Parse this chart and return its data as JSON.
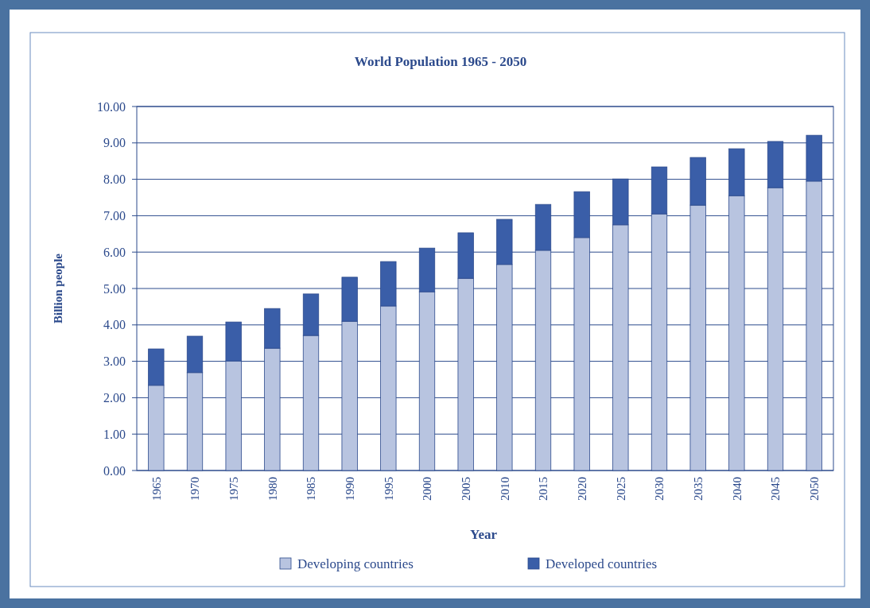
{
  "chart_data": {
    "type": "bar",
    "title": "World Population 1965 - 2050",
    "xlabel": "Year",
    "ylabel": "Billion people",
    "categories": [
      "1965",
      "1970",
      "1975",
      "1980",
      "1985",
      "1990",
      "1995",
      "2000",
      "2005",
      "2010",
      "2015",
      "2020",
      "2025",
      "2030",
      "2035",
      "2040",
      "2045",
      "2050"
    ],
    "series": [
      {
        "name": "Developing countries",
        "color": "#b8c4e0",
        "values": [
          2.34,
          2.69,
          3.01,
          3.36,
          3.71,
          4.1,
          4.52,
          4.91,
          5.28,
          5.66,
          6.05,
          6.4,
          6.75,
          7.05,
          7.29,
          7.55,
          7.77,
          7.95
        ]
      },
      {
        "name": "Developed countries",
        "color": "#3a5ea8",
        "values": [
          1.0,
          1.0,
          1.07,
          1.09,
          1.14,
          1.21,
          1.22,
          1.2,
          1.25,
          1.24,
          1.26,
          1.26,
          1.26,
          1.29,
          1.31,
          1.29,
          1.27,
          1.26
        ]
      }
    ],
    "stacked": true,
    "ylim": [
      0,
      10
    ],
    "yticks": [
      {
        "value": 0,
        "label": "0.00"
      },
      {
        "value": 1,
        "label": "1.00"
      },
      {
        "value": 2,
        "label": "2.00"
      },
      {
        "value": 3,
        "label": "3.00"
      },
      {
        "value": 4,
        "label": "4.00"
      },
      {
        "value": 5,
        "label": "5.00"
      },
      {
        "value": 6,
        "label": "6.00"
      },
      {
        "value": 7,
        "label": "7.00"
      },
      {
        "value": 8,
        "label": "8.00"
      },
      {
        "value": 9,
        "label": "9.00"
      },
      {
        "value": 10,
        "label": "10.00"
      }
    ],
    "grid": "y",
    "legend": "bottom"
  }
}
